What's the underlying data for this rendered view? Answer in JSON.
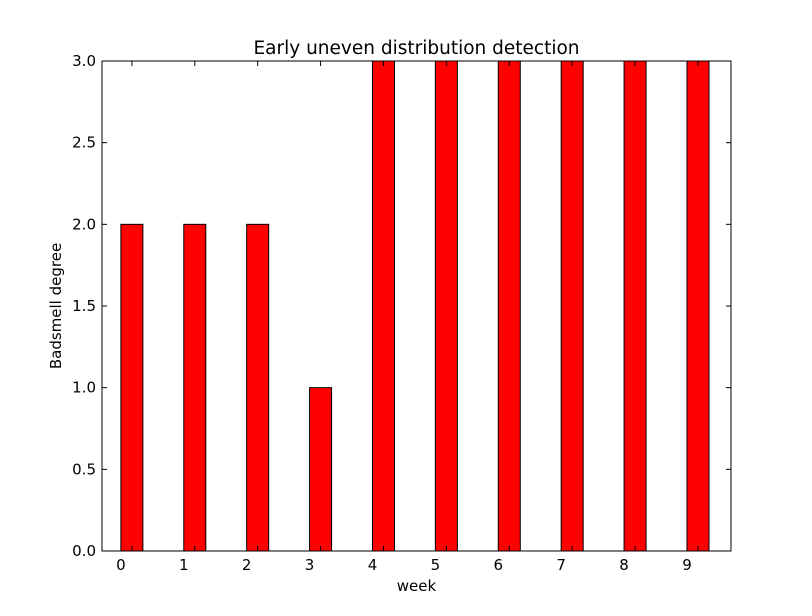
{
  "chart_data": {
    "type": "bar",
    "title": "Early uneven distribution detection",
    "xlabel": "week",
    "ylabel": "Badsmell degree",
    "categories": [
      "0",
      "1",
      "2",
      "3",
      "4",
      "5",
      "6",
      "7",
      "8",
      "9"
    ],
    "values": [
      2,
      2,
      2,
      1,
      3,
      3,
      3,
      3,
      3,
      3
    ],
    "ylim": [
      0,
      3.0
    ],
    "yticks": [
      "0.0",
      "0.5",
      "1.0",
      "1.5",
      "2.0",
      "2.5",
      "3.0"
    ],
    "xticks": [
      "0",
      "1",
      "2",
      "3",
      "4",
      "5",
      "6",
      "7",
      "8",
      "9"
    ],
    "bar_color": "#ff0000",
    "edge_color": "#000000",
    "grid": false,
    "legend": "none"
  }
}
